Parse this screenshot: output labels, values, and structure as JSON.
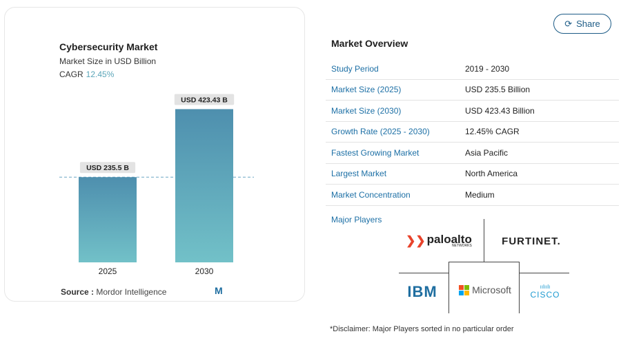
{
  "chart_data": {
    "type": "bar",
    "title": "Cybersecurity Market",
    "subtitle": "Market Size in USD Billion",
    "cagr_label": "CAGR",
    "cagr_value": "12.45%",
    "categories": [
      "2025",
      "2030"
    ],
    "values": [
      235.5,
      423.43
    ],
    "data_labels": [
      "USD 235.5 B",
      "USD 423.43 B"
    ],
    "ylim": [
      0,
      470
    ],
    "reference_line": 235.5,
    "colors": {
      "bar_top": "#4e8fae",
      "bar_bottom": "#72c1c8",
      "label_bg": "#e3e3e3",
      "ref_line": "#6aa6c4"
    }
  },
  "source": {
    "label": "Source :",
    "value": "Mordor Intelligence"
  },
  "share": {
    "label": "Share",
    "icon": "share-icon"
  },
  "overview": {
    "title": "Market Overview",
    "rows": [
      {
        "key": "Study Period",
        "value": "2019 - 2030"
      },
      {
        "key": "Market Size (2025)",
        "value": "USD 235.5 Billion"
      },
      {
        "key": "Market Size (2030)",
        "value": "USD 423.43 Billion"
      },
      {
        "key": "Growth Rate (2025 - 2030)",
        "value": "12.45% CAGR"
      },
      {
        "key": "Fastest Growing Market",
        "value": "Asia Pacific"
      },
      {
        "key": "Largest Market",
        "value": "North America"
      },
      {
        "key": "Market Concentration",
        "value": "Medium"
      }
    ]
  },
  "major_players": {
    "title": "Major Players",
    "logos": {
      "paloalto": "paloalto",
      "paloalto_sub": "NETWORKS",
      "fortinet": "FURTINET.",
      "ibm": "IBM",
      "microsoft": "Microsoft",
      "cisco": "CISCO"
    }
  },
  "disclaimer": "*Disclaimer: Major Players sorted in no particular order",
  "accent_color": "#1c6fa5"
}
